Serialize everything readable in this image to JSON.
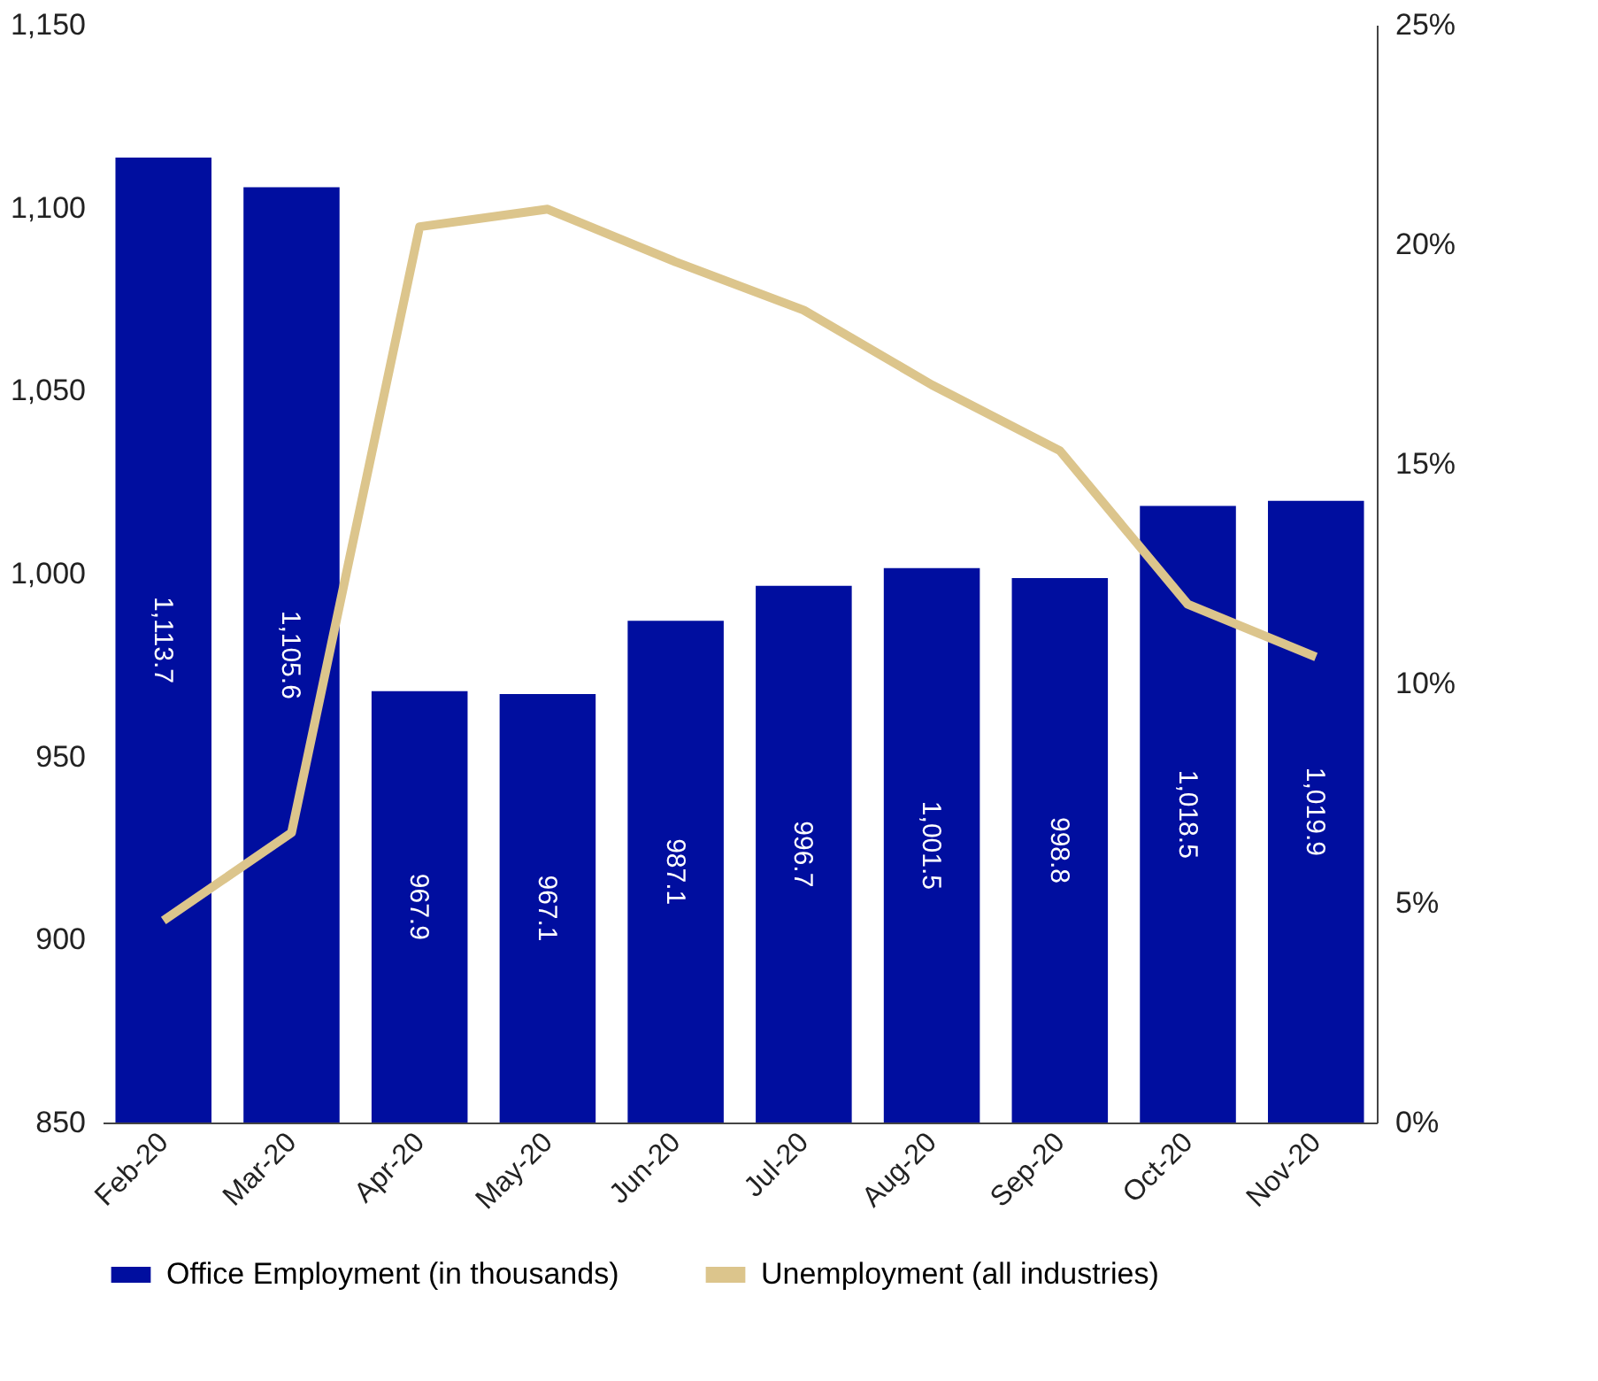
{
  "chart_data": {
    "type": "bar",
    "categories": [
      "Feb-20",
      "Mar-20",
      "Apr-20",
      "May-20",
      "Jun-20",
      "Jul-20",
      "Aug-20",
      "Sep-20",
      "Oct-20",
      "Nov-20"
    ],
    "series": [
      {
        "name": "Office Employment (in thousands)",
        "color": "#000e9f",
        "values": [
          1113.7,
          1105.6,
          967.9,
          967.1,
          987.1,
          996.7,
          1001.5,
          998.8,
          1018.5,
          1019.9
        ],
        "value_labels": [
          "1,113.7",
          "1,105.6",
          "967.9",
          "967.1",
          "987.1",
          "996.7",
          "1,001.5",
          "998.8",
          "1,018.5",
          "1,019.9"
        ]
      },
      {
        "name": "Unemployment (all industries)",
        "type": "line",
        "axis": "y2",
        "color": "#dcc58c",
        "values": [
          4.6,
          6.6,
          20.4,
          20.8,
          19.6,
          18.5,
          16.8,
          15.3,
          11.8,
          10.6
        ]
      }
    ],
    "ylim": [
      850,
      1150
    ],
    "yticks": [
      850,
      900,
      950,
      {
        "value": 1000,
        "label": "1,000"
      },
      {
        "value": 1050,
        "label": "1,050"
      },
      {
        "value": 1100,
        "label": "1,100"
      },
      {
        "value": 1150,
        "label": "1,150"
      }
    ],
    "y2lim": [
      0,
      25
    ],
    "y2ticks": [
      {
        "value": 0,
        "label": "0%"
      },
      {
        "value": 5,
        "label": "5%"
      },
      {
        "value": 10,
        "label": "10%"
      },
      {
        "value": 15,
        "label": "15%"
      },
      {
        "value": 20,
        "label": "20%"
      },
      {
        "value": 25,
        "label": "25%"
      }
    ],
    "legend": "bottom",
    "grid": false
  }
}
